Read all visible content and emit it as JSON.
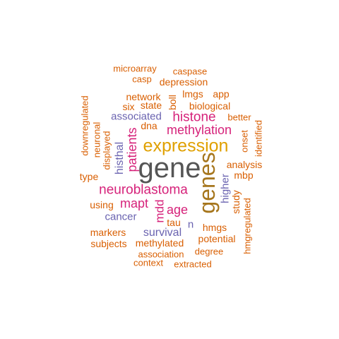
{
  "words": {
    "gene": "gene",
    "genes": "genes",
    "expression": "expression",
    "neuroblastoma": "neuroblastoma",
    "histone": "histone",
    "methylation": "methylation",
    "patients": "patients",
    "mapt": "mapt",
    "age": "age",
    "mdd": "mdd",
    "histhal": "histhal",
    "survival": "survival",
    "associated": "associated",
    "cancer": "cancer",
    "higher": "higher",
    "n": "n",
    "microarray": "microarray",
    "caspase": "caspase",
    "casp": "casp",
    "depression": "depression",
    "network": "network",
    "lmgs": "lmgs",
    "app": "app",
    "six": "six",
    "state": "state",
    "boll": "boll",
    "biological": "biological",
    "better": "better",
    "dna": "dna",
    "onset": "onset",
    "identified": "identified",
    "downregulated": "downregulated",
    "neuronal": "neuronal",
    "displayed": "displayed",
    "type": "type",
    "analysis": "analysis",
    "mbp": "mbp",
    "using": "using",
    "study": "study",
    "tau": "tau",
    "hmgs": "hmgs",
    "hmgregulated": "hmgregulated",
    "markers": "markers",
    "potential": "potential",
    "subjects": "subjects",
    "methylated": "methylated",
    "association": "association",
    "degree": "degree",
    "context": "context",
    "extracted": "extracted"
  },
  "colors": {
    "orange": "#d95f02",
    "magenta": "#d6227a",
    "purple": "#6a63b0",
    "gold": "#e0a000",
    "olive": "#a6761d",
    "gray": "#555555"
  }
}
